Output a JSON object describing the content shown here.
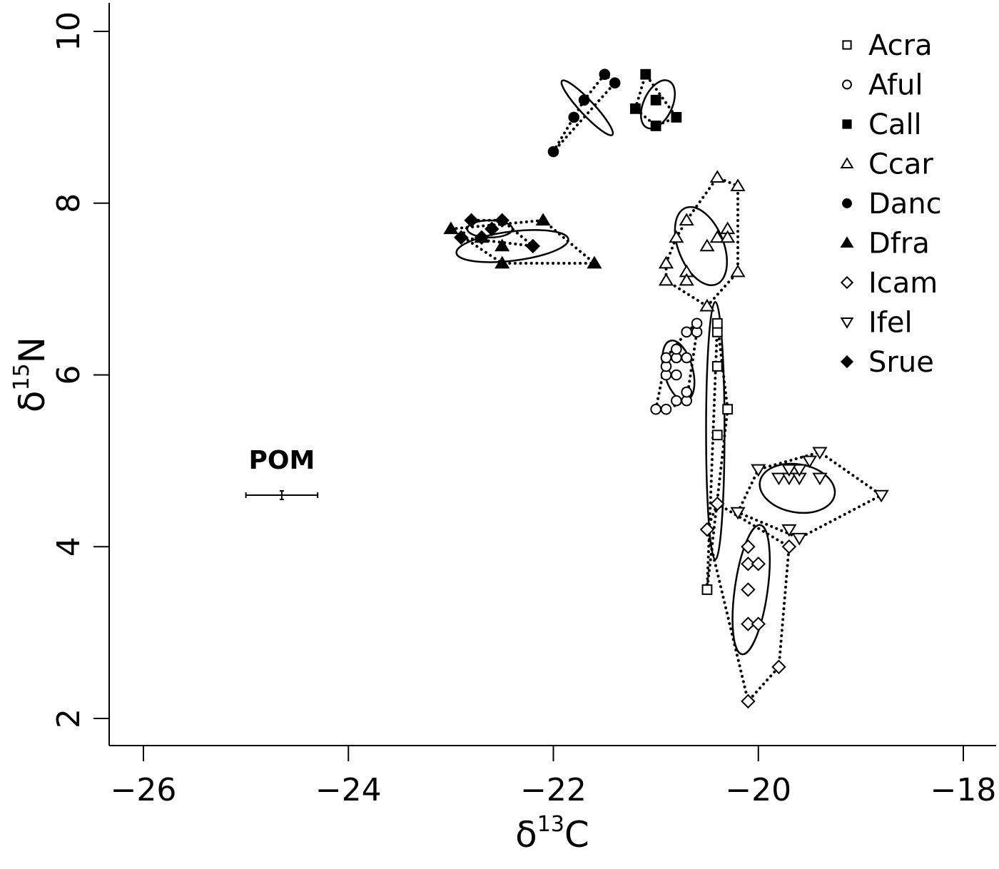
{
  "chart_data": {
    "type": "scatter",
    "title": "",
    "xlabel": {
      "symbol": "δ",
      "sup": "13",
      "base": "C"
    },
    "ylabel": {
      "symbol": "δ",
      "sup": "15",
      "base": "N"
    },
    "xlim": [
      -26.3,
      -17.7
    ],
    "ylim": [
      1.7,
      10.3
    ],
    "xticks": [
      -26,
      -24,
      -22,
      -20,
      -18
    ],
    "yticks": [
      2,
      4,
      6,
      8,
      10
    ],
    "xtick_labels": [
      "−26",
      "−24",
      "−22",
      "−20",
      "−18"
    ],
    "ytick_labels": [
      "2",
      "4",
      "6",
      "8",
      "10"
    ],
    "grid": false,
    "legend_position": "top-right",
    "annotation": {
      "label": "POM",
      "x": -24.65,
      "y": 4.6,
      "xerr": 0.35,
      "yerr": 0.05
    },
    "series": [
      {
        "name": "Acra",
        "marker": "open-square",
        "points": [
          [
            -20.5,
            3.5
          ],
          [
            -20.4,
            5.3
          ],
          [
            -20.3,
            5.6
          ],
          [
            -20.4,
            6.1
          ],
          [
            -20.4,
            6.5
          ],
          [
            -20.4,
            6.6
          ]
        ]
      },
      {
        "name": "Aful",
        "marker": "open-circle",
        "points": [
          [
            -21.0,
            5.6
          ],
          [
            -20.9,
            5.6
          ],
          [
            -20.8,
            5.7
          ],
          [
            -20.7,
            5.7
          ],
          [
            -20.7,
            5.8
          ],
          [
            -20.9,
            6.0
          ],
          [
            -20.8,
            6.0
          ],
          [
            -20.9,
            6.1
          ],
          [
            -20.8,
            6.2
          ],
          [
            -20.9,
            6.2
          ],
          [
            -20.7,
            6.2
          ],
          [
            -20.8,
            6.3
          ],
          [
            -20.7,
            6.5
          ],
          [
            -20.6,
            6.5
          ],
          [
            -20.6,
            6.6
          ]
        ]
      },
      {
        "name": "Call",
        "marker": "filled-square",
        "points": [
          [
            -21.1,
            9.5
          ],
          [
            -21.2,
            9.1
          ],
          [
            -21.0,
            9.2
          ],
          [
            -21.0,
            8.9
          ],
          [
            -20.8,
            9.0
          ]
        ]
      },
      {
        "name": "Ccar",
        "marker": "open-triangle-up",
        "points": [
          [
            -20.4,
            8.3
          ],
          [
            -20.2,
            8.2
          ],
          [
            -20.7,
            7.8
          ],
          [
            -20.8,
            7.6
          ],
          [
            -20.4,
            7.6
          ],
          [
            -20.5,
            7.5
          ],
          [
            -20.3,
            7.7
          ],
          [
            -20.3,
            7.6
          ],
          [
            -20.9,
            7.3
          ],
          [
            -20.7,
            7.2
          ],
          [
            -20.7,
            7.1
          ],
          [
            -20.9,
            7.1
          ],
          [
            -20.2,
            7.2
          ],
          [
            -20.5,
            6.8
          ]
        ]
      },
      {
        "name": "Danc",
        "marker": "filled-circle",
        "points": [
          [
            -21.5,
            9.5
          ],
          [
            -21.4,
            9.4
          ],
          [
            -21.7,
            9.2
          ],
          [
            -21.8,
            9.0
          ],
          [
            -22.0,
            8.6
          ]
        ]
      },
      {
        "name": "Dfra",
        "marker": "filled-triangle-up",
        "points": [
          [
            -23.0,
            7.7
          ],
          [
            -22.1,
            7.8
          ],
          [
            -22.7,
            7.6
          ],
          [
            -22.5,
            7.5
          ],
          [
            -22.5,
            7.3
          ],
          [
            -21.6,
            7.3
          ]
        ]
      },
      {
        "name": "Icam",
        "marker": "open-diamond",
        "points": [
          [
            -20.5,
            4.2
          ],
          [
            -20.4,
            4.5
          ],
          [
            -20.1,
            4.0
          ],
          [
            -20.1,
            3.8
          ],
          [
            -20.0,
            3.8
          ],
          [
            -20.1,
            3.5
          ],
          [
            -20.1,
            3.1
          ],
          [
            -20.0,
            3.1
          ],
          [
            -19.8,
            2.6
          ],
          [
            -20.1,
            2.2
          ],
          [
            -19.7,
            4.0
          ]
        ]
      },
      {
        "name": "Ifel",
        "marker": "open-triangle-down",
        "points": [
          [
            -20.0,
            4.9
          ],
          [
            -19.8,
            4.8
          ],
          [
            -19.7,
            4.8
          ],
          [
            -19.6,
            4.8
          ],
          [
            -19.6,
            4.9
          ],
          [
            -19.7,
            4.9
          ],
          [
            -19.5,
            5.0
          ],
          [
            -19.4,
            5.1
          ],
          [
            -19.4,
            4.8
          ],
          [
            -18.8,
            4.6
          ],
          [
            -20.2,
            4.4
          ],
          [
            -19.7,
            4.2
          ],
          [
            -19.6,
            4.1
          ]
        ]
      },
      {
        "name": "Srue",
        "marker": "filled-diamond",
        "points": [
          [
            -22.8,
            7.8
          ],
          [
            -22.6,
            7.7
          ],
          [
            -22.7,
            7.6
          ],
          [
            -22.9,
            7.6
          ],
          [
            -22.5,
            7.8
          ],
          [
            -22.2,
            7.5
          ]
        ]
      }
    ],
    "ellipses": [
      {
        "series": "Acra",
        "cx": -20.42,
        "cy": 5.35,
        "rx": 0.09,
        "ry": 1.5,
        "angle": 0
      },
      {
        "series": "Aful",
        "cx": -20.78,
        "cy": 6.05,
        "rx": 0.14,
        "ry": 0.36,
        "angle": 15
      },
      {
        "series": "Call",
        "cx": -20.98,
        "cy": 9.15,
        "rx": 0.14,
        "ry": 0.3,
        "angle": -25
      },
      {
        "series": "Ccar",
        "cx": -20.56,
        "cy": 7.5,
        "rx": 0.22,
        "ry": 0.48,
        "angle": 22
      },
      {
        "series": "Danc",
        "cx": -21.67,
        "cy": 9.11,
        "rx": 0.07,
        "ry": 0.43,
        "angle": 43
      },
      {
        "series": "Dfra",
        "cx": -22.4,
        "cy": 7.5,
        "rx": 0.55,
        "ry": 0.17,
        "angle": 7
      },
      {
        "series": "Icam",
        "cx": -20.07,
        "cy": 3.5,
        "rx": 0.16,
        "ry": 0.76,
        "angle": -8
      },
      {
        "series": "Ifel",
        "cx": -19.62,
        "cy": 4.68,
        "rx": 0.37,
        "ry": 0.28,
        "angle": -10
      },
      {
        "series": "Srue",
        "cx": -22.62,
        "cy": 7.7,
        "rx": 0.22,
        "ry": 0.1,
        "angle": 0
      }
    ]
  }
}
